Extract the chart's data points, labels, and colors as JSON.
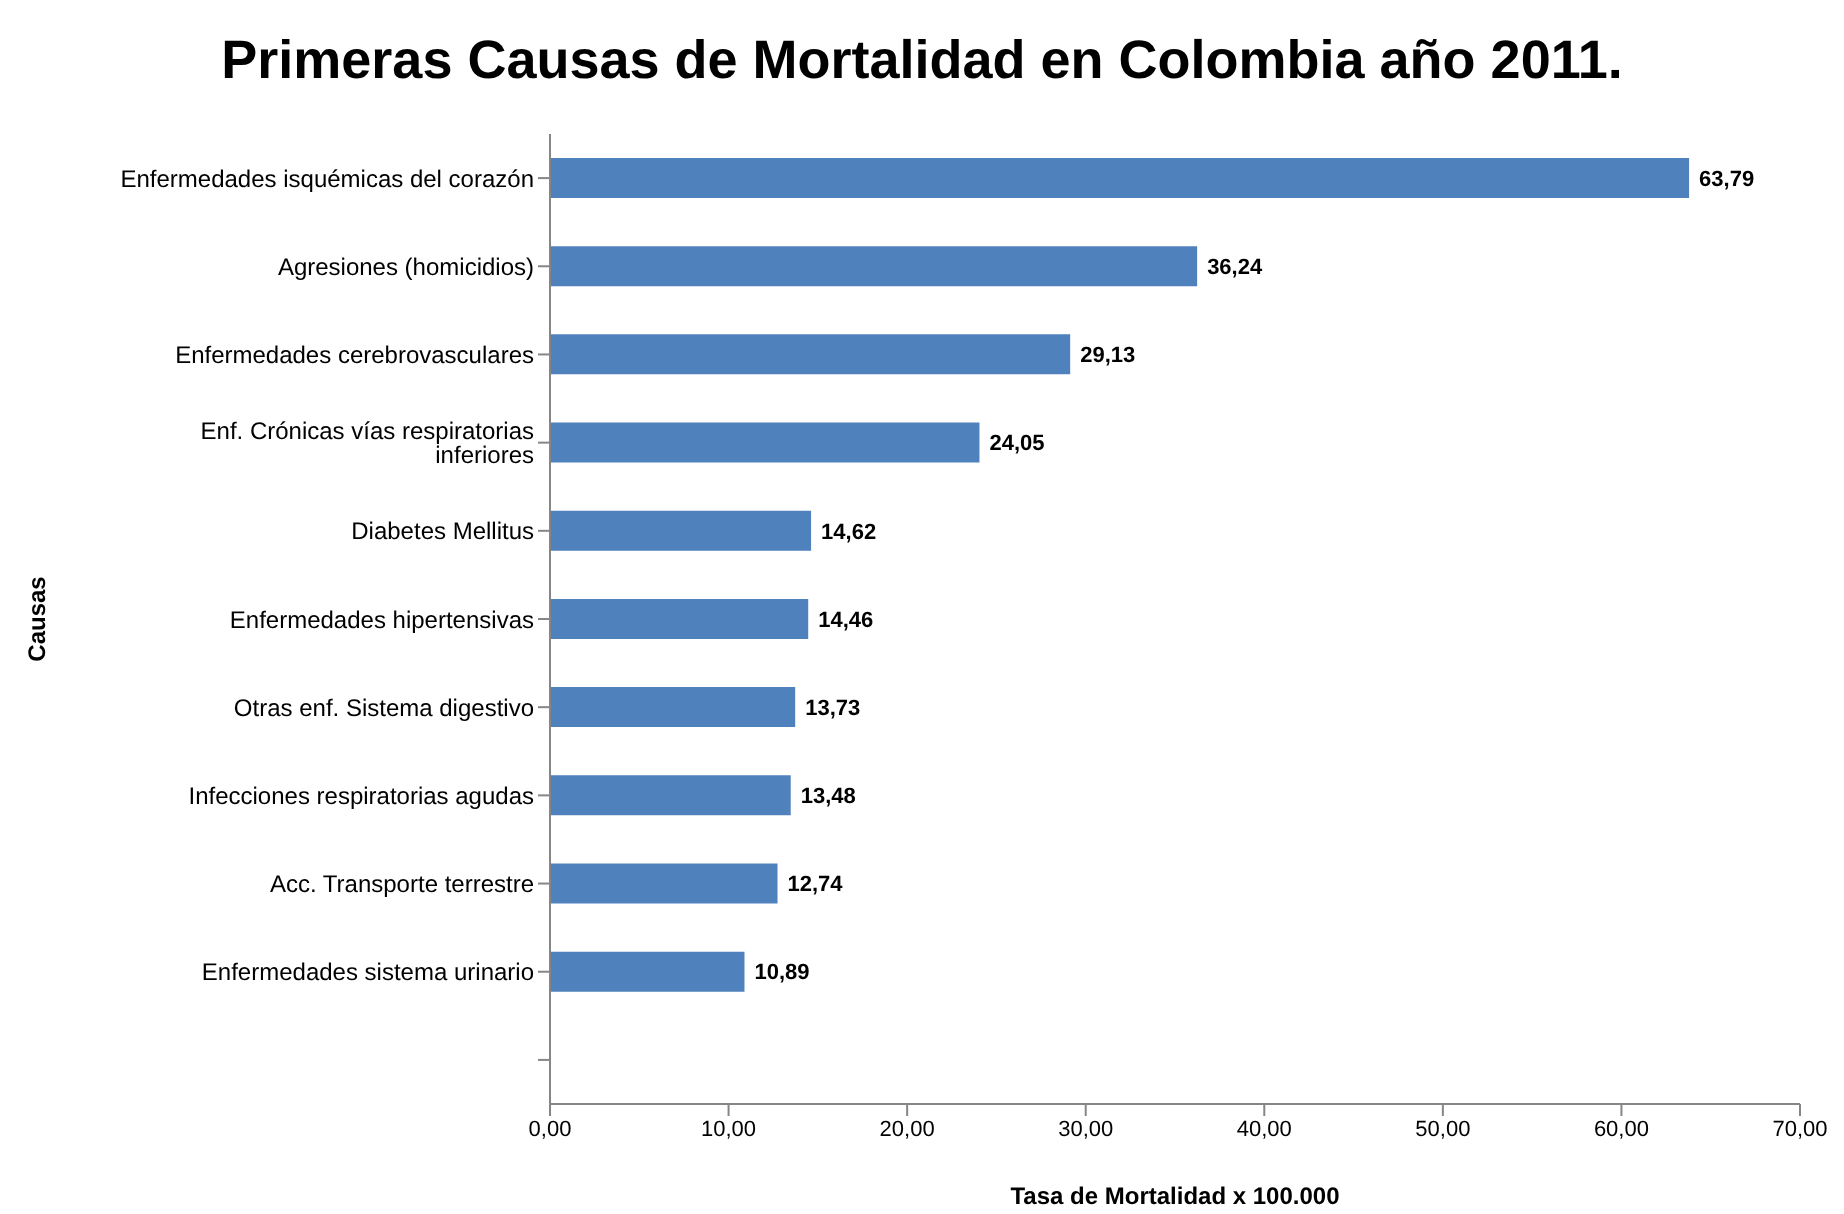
{
  "chart_data": {
    "type": "bar",
    "orientation": "horizontal",
    "title": "Primeras Causas de Mortalidad en Colombia año 2011.",
    "xlabel": "Tasa de Mortalidad x 100.000",
    "ylabel": "Causas",
    "categories": [
      "Enfermedades isquémicas del corazón",
      "Agresiones (homicidios)",
      "Enfermedades cerebrovasculares",
      "Enf. Crónicas vías respiratorias inferiores",
      "Diabetes Mellitus",
      "Enfermedades hipertensivas",
      "Otras enf. Sistema digestivo",
      "Infecciones respiratorias agudas",
      "Acc. Transporte terrestre",
      "Enfermedades sistema urinario",
      null
    ],
    "values": [
      63.79,
      36.24,
      29.13,
      24.05,
      14.62,
      14.46,
      13.73,
      13.48,
      12.74,
      10.89,
      null
    ],
    "value_labels": [
      "63,79",
      "36,24",
      "29,13",
      "24,05",
      "14,62",
      "14,46",
      "13,73",
      "13,48",
      "12,74",
      "10,89",
      null
    ],
    "color": "#4f81bd",
    "xlim": [
      0,
      70
    ],
    "xticks": [
      {
        "value": 0,
        "label": "0,00"
      },
      {
        "value": 10,
        "label": "10,00"
      },
      {
        "value": 20,
        "label": "20,00"
      },
      {
        "value": 30,
        "label": "30,00"
      },
      {
        "value": 40,
        "label": "40,00"
      },
      {
        "value": 50,
        "label": "50,00"
      },
      {
        "value": 60,
        "label": "60,00"
      },
      {
        "value": 70,
        "label": "70,00"
      }
    ],
    "grid": false,
    "legend": false
  }
}
